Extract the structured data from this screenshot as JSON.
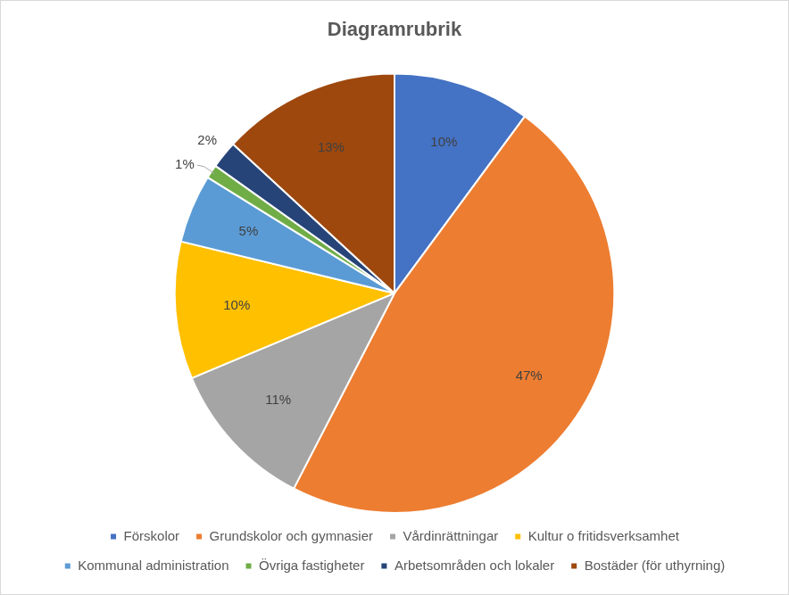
{
  "chart_data": {
    "type": "pie",
    "title": "Diagramrubrik",
    "categories": [
      "Förskolor",
      "Grundskolor och gymnasier",
      "Vårdinrättningar",
      "Kultur o fritidsverksamhet",
      "Kommunal administration",
      "Övriga fastigheter",
      "Arbetsområden och lokaler",
      "Bostäder (för uthyrning)"
    ],
    "values": [
      10,
      47,
      11,
      10,
      5,
      1,
      2,
      13
    ],
    "value_labels": [
      "10%",
      "47%",
      "11%",
      "10%",
      "5%",
      "1%",
      "2%",
      "13%"
    ],
    "colors": [
      "#4472c4",
      "#ed7d31",
      "#a5a5a5",
      "#ffc000",
      "#5b9bd5",
      "#70ad47",
      "#264478",
      "#9e480e"
    ],
    "data_labels": true,
    "legend": "bottom"
  }
}
